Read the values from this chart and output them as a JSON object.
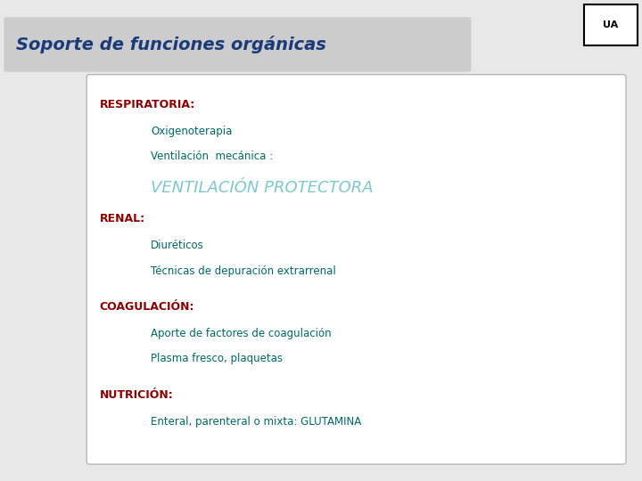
{
  "title": "Soporte de funciones orgánicas",
  "title_color": "#1a3a7a",
  "title_bg": "#cccccc",
  "slide_bg": "#e8e8e8",
  "box_bg": "#ffffff",
  "box_border": "#aaaaaa",
  "label_fontsize": 9,
  "item_fontsize": 8.5,
  "protectora_fontsize": 13,
  "title_fontsize": 14,
  "sections": [
    {
      "label": "RESPIRATORIA:",
      "label_color": "#8b0000",
      "indent_items": [
        {
          "text": "Oxigenoterapia",
          "color": "#006666",
          "style": "normal"
        },
        {
          "text": "Ventilación  mecánica :",
          "color": "#006666",
          "style": "normal"
        },
        {
          "text": "VENTILACIÓN PROTECTORA",
          "color": "#7ec8c8",
          "style": "italic"
        }
      ]
    },
    {
      "label": "RENAL:",
      "label_color": "#8b0000",
      "indent_items": [
        {
          "text": "Diuréticos",
          "color": "#006666",
          "style": "normal"
        },
        {
          "text": "Técnicas de depuración extrarrenal",
          "color": "#006666",
          "style": "normal"
        }
      ]
    },
    {
      "label": "COAGULACIÓN:",
      "label_color": "#8b0000",
      "indent_items": [
        {
          "text": "Aporte de factores de coagulación",
          "color": "#006666",
          "style": "normal"
        },
        {
          "text": "Plasma fresco, plaquetas",
          "color": "#006666",
          "style": "normal"
        }
      ]
    },
    {
      "label": "NUTRICIÓN:",
      "label_color": "#8b0000",
      "indent_items": [
        {
          "text": "Enteral, parenteral o mixta: GLUTAMINA",
          "color": "#006666",
          "style": "normal"
        }
      ]
    }
  ]
}
